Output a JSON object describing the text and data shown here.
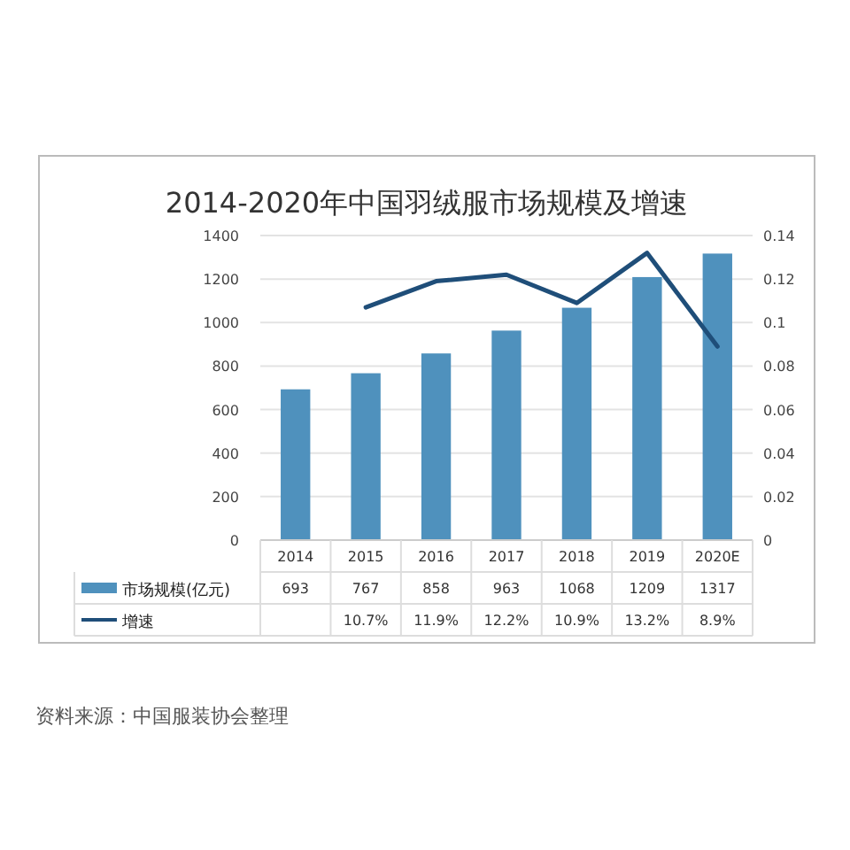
{
  "chart_data": {
    "type": "bar",
    "title": "2014-2020年中国羽绒服市场规模及增速",
    "categories": [
      "2014",
      "2015",
      "2016",
      "2017",
      "2018",
      "2019",
      "2020E"
    ],
    "series": [
      {
        "name": "市场规模(亿元)",
        "color": "#4f91bd",
        "values": [
          693,
          767,
          858,
          963,
          1068,
          1209,
          1317
        ],
        "value_labels": [
          "693",
          "767",
          "858",
          "963",
          "1068",
          "1209",
          "1317"
        ]
      },
      {
        "name": "增速",
        "type": "line",
        "axis": "y2",
        "color": "#1f4e79",
        "values": [
          null,
          0.107,
          0.119,
          0.122,
          0.109,
          0.132,
          0.089
        ],
        "value_labels": [
          null,
          "10.7%",
          "11.9%",
          "12.2%",
          "10.9%",
          "13.2%",
          "8.9%"
        ]
      }
    ],
    "ylim": [
      0,
      1400
    ],
    "yticks": [
      0,
      200,
      400,
      600,
      800,
      1000,
      1200,
      1400
    ],
    "y2lim": [
      0,
      0.14
    ],
    "y2ticks": [
      0,
      0.02,
      0.04,
      0.06,
      0.08,
      0.1,
      0.12,
      0.14
    ],
    "grid": "y",
    "legend": "bottom",
    "annotations": [
      "资料来源：中国服装协会整理"
    ]
  }
}
